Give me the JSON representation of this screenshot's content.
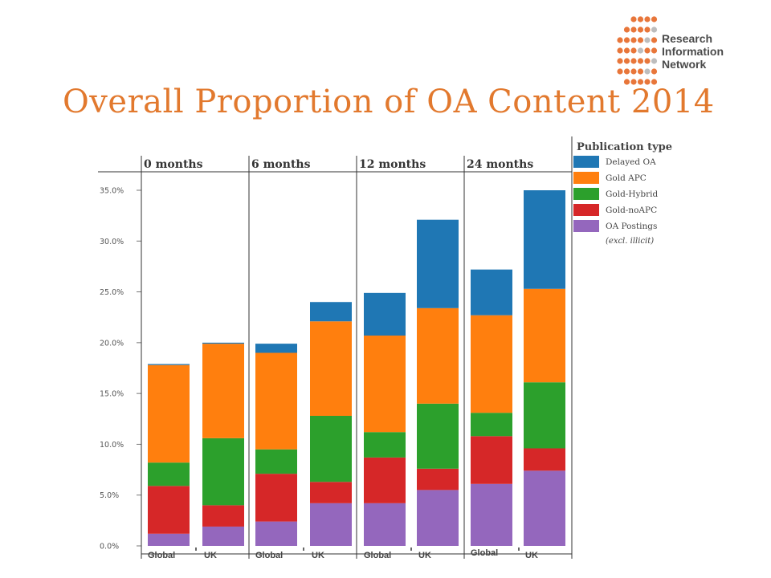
{
  "slide": {
    "title": "Overall Proportion of OA Content 2014"
  },
  "logo": {
    "lines": [
      "Research",
      "Information",
      "Network"
    ],
    "dot_color": "#e8763a",
    "dot_color_light": "#bdbdbd"
  },
  "chart_data": {
    "type": "bar",
    "stacked": true,
    "ylim": [
      0,
      35
    ],
    "yticks": [
      "0.0%",
      "5.0%",
      "10.0%",
      "15.0%",
      "20.0%",
      "25.0%",
      "30.0%",
      "35.0%"
    ],
    "ytick_values": [
      0,
      5,
      10,
      15,
      20,
      25,
      30,
      35
    ],
    "panels": [
      "0 months",
      "6 months",
      "12 months",
      "24 months"
    ],
    "categories": [
      "Global",
      "UK",
      "Global",
      "UK",
      "Global",
      "UK",
      "Global",
      "UK"
    ],
    "legend": {
      "title": "Publication type",
      "placement": "right",
      "note": "(excl. illicit)"
    },
    "series": [
      {
        "name": "OA Postings",
        "color": "#9467bd",
        "values": [
          1.2,
          1.9,
          2.4,
          4.2,
          4.2,
          5.5,
          6.1,
          7.4
        ]
      },
      {
        "name": "Gold-noAPC",
        "color": "#d62728",
        "values": [
          4.7,
          2.1,
          4.7,
          2.1,
          4.5,
          2.1,
          4.7,
          2.2
        ]
      },
      {
        "name": "Gold-Hybrid",
        "color": "#2ca02c",
        "values": [
          2.3,
          6.6,
          2.4,
          6.5,
          2.5,
          6.4,
          2.3,
          6.5
        ]
      },
      {
        "name": "Gold APC",
        "color": "#ff7f0e",
        "values": [
          9.6,
          9.3,
          9.5,
          9.3,
          9.5,
          9.4,
          9.6,
          9.2
        ]
      },
      {
        "name": "Delayed OA",
        "color": "#1f77b4",
        "values": [
          0.1,
          0.1,
          0.9,
          1.9,
          4.2,
          8.7,
          4.5,
          9.7
        ]
      }
    ]
  }
}
